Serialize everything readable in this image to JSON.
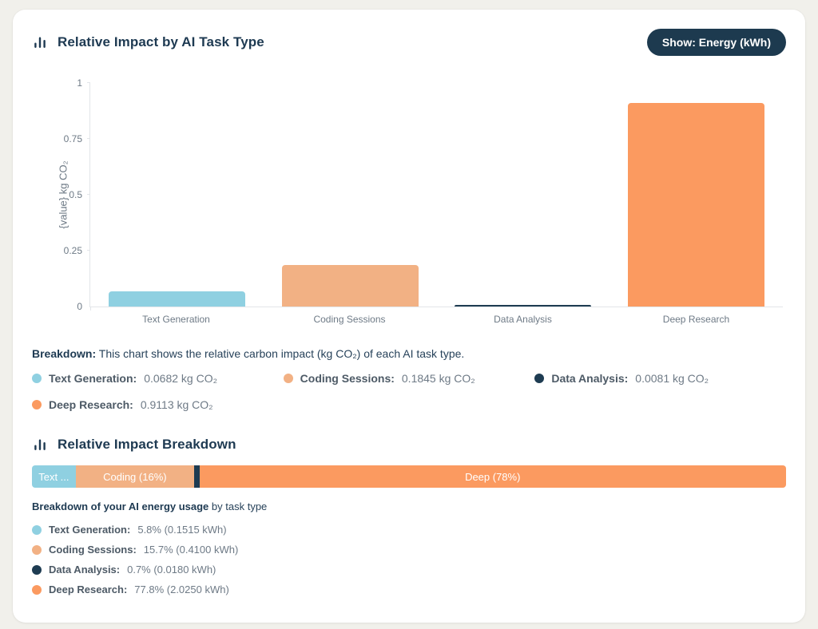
{
  "colors": {
    "page_bg": "#f1f0eb",
    "card_bg": "#ffffff",
    "navy": "#1e3a52",
    "button_bg": "#1d3a4f",
    "button_text": "#ffffff",
    "muted_text": "#6e7a86",
    "label_text": "#4d5a66",
    "axis_line": "#e2e5e9",
    "series": [
      "#8fd0e1",
      "#f2b184",
      "#1e3c52",
      "#fb9a60"
    ]
  },
  "section1": {
    "title": "Relative Impact by AI Task Type",
    "button_label": "Show: Energy (kWh)",
    "y_axis_title": "{value} kg CO₂",
    "y_ticks": [
      "1",
      "0.75",
      "0.5",
      "0.25",
      "0"
    ],
    "x_labels": [
      "Text Generation",
      "Coding Sessions",
      "Data Analysis",
      "Deep Research"
    ],
    "caption_label": "Breakdown:",
    "caption_text": " This chart shows the relative carbon impact (kg CO₂) of each AI task type.",
    "legend": [
      {
        "name": "Text Generation:",
        "value": "0.0682 kg CO₂"
      },
      {
        "name": "Coding Sessions:",
        "value": "0.1845 kg CO₂"
      },
      {
        "name": "Data Analysis:",
        "value": "0.0081 kg CO₂"
      },
      {
        "name": "Deep Research:",
        "value": "0.9113 kg CO₂"
      }
    ]
  },
  "section2": {
    "title": "Relative Impact Breakdown",
    "segment_labels": [
      "Text ...",
      "Coding (16%)",
      "",
      "Deep (78%)"
    ],
    "note_bold": "Breakdown of your AI energy usage",
    "note_rest": " by task type",
    "items": [
      {
        "name": "Text Generation:",
        "value": "5.8% (0.1515 kWh)"
      },
      {
        "name": "Coding Sessions:",
        "value": "15.7% (0.4100 kWh)"
      },
      {
        "name": "Data Analysis:",
        "value": "0.7% (0.0180 kWh)"
      },
      {
        "name": "Deep Research:",
        "value": "77.8% (2.0250 kWh)"
      }
    ]
  },
  "chart_data": [
    {
      "type": "bar",
      "title": "Relative Impact by AI Task Type",
      "categories": [
        "Text Generation",
        "Coding Sessions",
        "Data Analysis",
        "Deep Research"
      ],
      "values": [
        0.0682,
        0.1845,
        0.0081,
        0.9113
      ],
      "unit": "kg CO₂",
      "xlabel": "",
      "ylabel": "{value} kg CO₂",
      "ylim": [
        0,
        1
      ],
      "yticks": [
        0,
        0.25,
        0.5,
        0.75,
        1
      ],
      "grid": false,
      "legend_position": "none",
      "bar_colors": [
        "#8fd0e1",
        "#f2b184",
        "#1e3c52",
        "#fb9a60"
      ]
    },
    {
      "type": "bar",
      "subtype": "horizontal-stacked-percent",
      "title": "Relative Impact Breakdown",
      "categories": [
        "Text Generation",
        "Coding Sessions",
        "Data Analysis",
        "Deep Research"
      ],
      "series": [
        {
          "name": "share_pct",
          "values": [
            5.8,
            15.7,
            0.7,
            77.8
          ]
        },
        {
          "name": "energy_kwh",
          "values": [
            0.1515,
            0.41,
            0.018,
            2.025
          ]
        }
      ],
      "segment_labels": [
        "Text ...",
        "Coding (16%)",
        "",
        "Deep (78%)"
      ],
      "colors": [
        "#8fd0e1",
        "#f2b184",
        "#1e3c52",
        "#fb9a60"
      ]
    }
  ]
}
